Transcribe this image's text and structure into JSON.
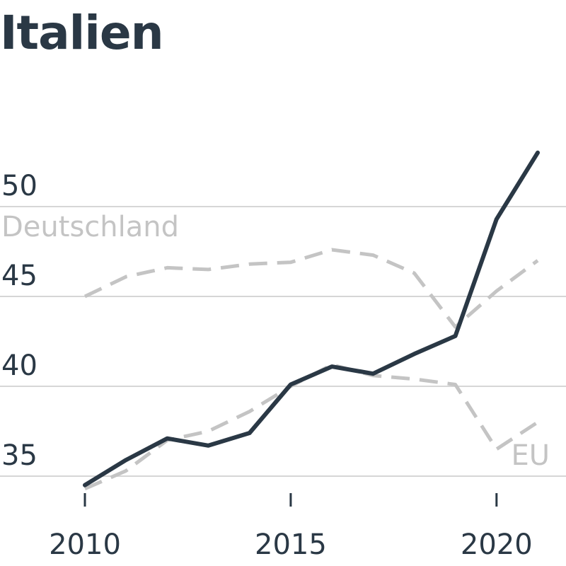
{
  "chart_data": {
    "type": "line",
    "title": "Italien",
    "xlabel": "",
    "ylabel": "",
    "x_ticks": [
      2010,
      2015,
      2020
    ],
    "y_ticks": [
      35,
      40,
      45,
      50
    ],
    "xlim": [
      2010,
      2021
    ],
    "ylim": [
      34,
      54
    ],
    "grid": "horizontal",
    "legend": "inline labels",
    "series": [
      {
        "key": "italy",
        "style": "solid",
        "color": "#2a3845",
        "x": [
          2010,
          2011,
          2012,
          2013,
          2014,
          2015,
          2016,
          2017,
          2018,
          2019,
          2020,
          2021
        ],
        "y": [
          34.5,
          35.9,
          37.1,
          36.7,
          37.4,
          40.1,
          41.1,
          40.7,
          41.8,
          42.8,
          49.3,
          53.0
        ]
      },
      {
        "key": "germany",
        "name": "Deutschland",
        "style": "dashed",
        "color": "#c4c4c4",
        "x": [
          2010,
          2011,
          2012,
          2013,
          2014,
          2015,
          2016,
          2017,
          2018,
          2019,
          2020,
          2021
        ],
        "y": [
          45.0,
          46.1,
          46.6,
          46.5,
          46.8,
          46.9,
          47.6,
          47.3,
          46.3,
          43.3,
          45.3,
          47.0
        ]
      },
      {
        "key": "eu",
        "name": "EU",
        "style": "dashed",
        "color": "#c4c4c4",
        "x": [
          2010,
          2011,
          2012,
          2013,
          2014,
          2015,
          2016,
          2017,
          2018,
          2019,
          2020,
          2021
        ],
        "y": [
          34.3,
          35.3,
          37.0,
          37.5,
          38.6,
          40.0,
          41.2,
          40.6,
          40.4,
          40.1,
          36.5,
          38.0
        ]
      }
    ]
  }
}
